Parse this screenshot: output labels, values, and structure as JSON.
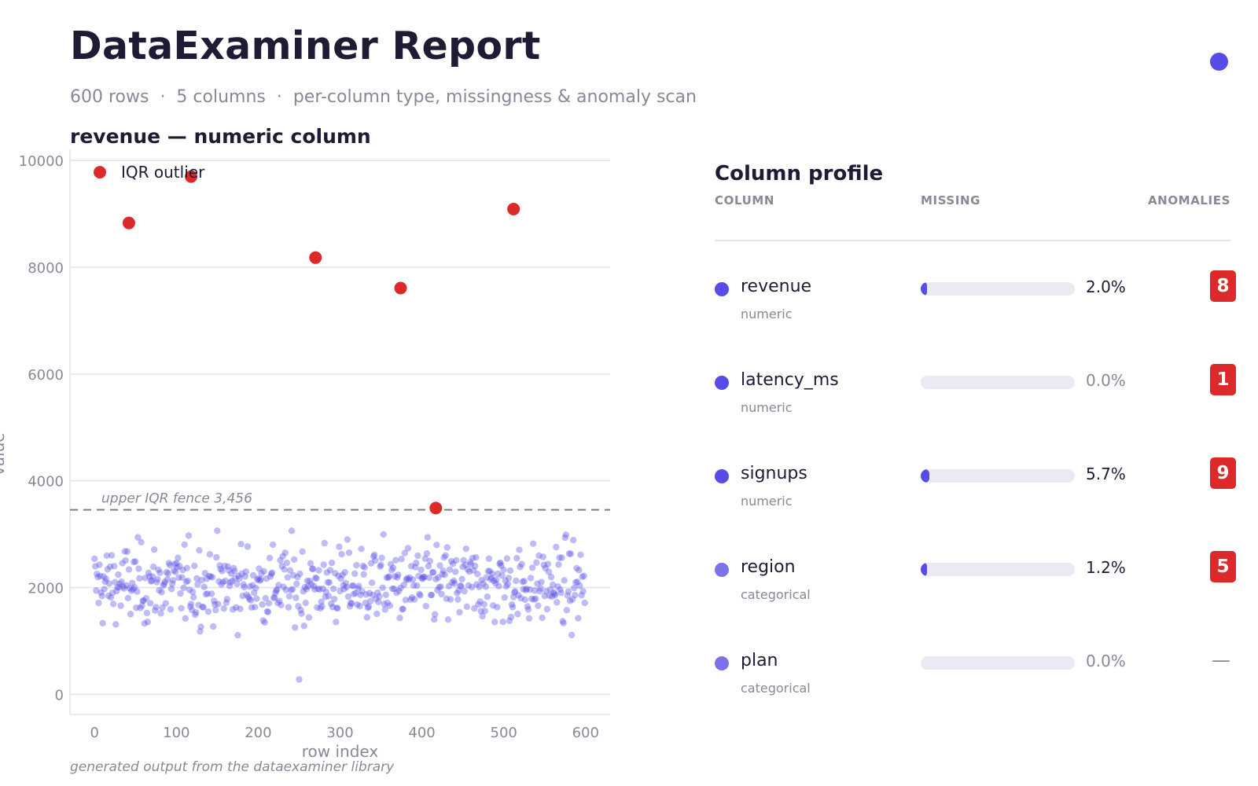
{
  "report": {
    "title": "DataExaminer Report",
    "subtitle": "600 rows  ·  5 columns  ·  per-column type, missingness & anomaly scan",
    "footnote": "generated output from the dataexaminer library"
  },
  "chart_title": "revenue — numeric column",
  "profile": {
    "title": "Column profile",
    "headers": {
      "column": "COLUMN",
      "missing": "MISSING",
      "anomalies": "ANOMALIES"
    },
    "rows": [
      {
        "name": "revenue",
        "type": "numeric",
        "missing_pct": 2.0,
        "missing_label": "2.0%",
        "anomalies": "8",
        "dot_color": "#574ce6"
      },
      {
        "name": "latency_ms",
        "type": "numeric",
        "missing_pct": 0.0,
        "missing_label": "0.0%",
        "anomalies": "1",
        "dot_color": "#574ce6"
      },
      {
        "name": "signups",
        "type": "numeric",
        "missing_pct": 5.7,
        "missing_label": "5.7%",
        "anomalies": "9",
        "dot_color": "#574ce6"
      },
      {
        "name": "region",
        "type": "categorical",
        "missing_pct": 1.2,
        "missing_label": "1.2%",
        "anomalies": "5",
        "dot_color": "#7b71ea"
      },
      {
        "name": "plan",
        "type": "categorical",
        "missing_pct": 0.0,
        "missing_label": "0.0%",
        "anomalies": "—",
        "dot_color": "#7b71ea"
      }
    ]
  },
  "colors": {
    "accent": "#574ce6",
    "outlier": "#dc2a2a",
    "muted": "#8a8797",
    "grid": "#e4e2f0"
  },
  "chart_data": {
    "type": "scatter",
    "title": "revenue — numeric column",
    "xlabel": "row index",
    "ylabel": "value",
    "xlim": [
      -30,
      630
    ],
    "ylim": [
      -200,
      10150
    ],
    "x_ticks": [
      0,
      100,
      200,
      300,
      400,
      500,
      600
    ],
    "y_ticks": [
      0,
      2000,
      4000,
      6000,
      8000,
      10000
    ],
    "grid": true,
    "legend": {
      "position": "top-left",
      "entries": [
        "IQR outlier"
      ]
    },
    "reference_line": {
      "label": "upper IQR fence  3,456",
      "y": 3456
    },
    "series": [
      {
        "name": "IQR outlier",
        "points": [
          [
            42,
            8830
          ],
          [
            118,
            9700
          ],
          [
            270,
            8180
          ],
          [
            374,
            7610
          ],
          [
            417,
            3490
          ],
          [
            512,
            9090
          ]
        ]
      },
      {
        "count": 600,
        "x_range": [
          0,
          599
        ],
        "typical_range": [
          1000,
          3200
        ],
        "min": 280,
        "max": 3350
      }
    ]
  }
}
